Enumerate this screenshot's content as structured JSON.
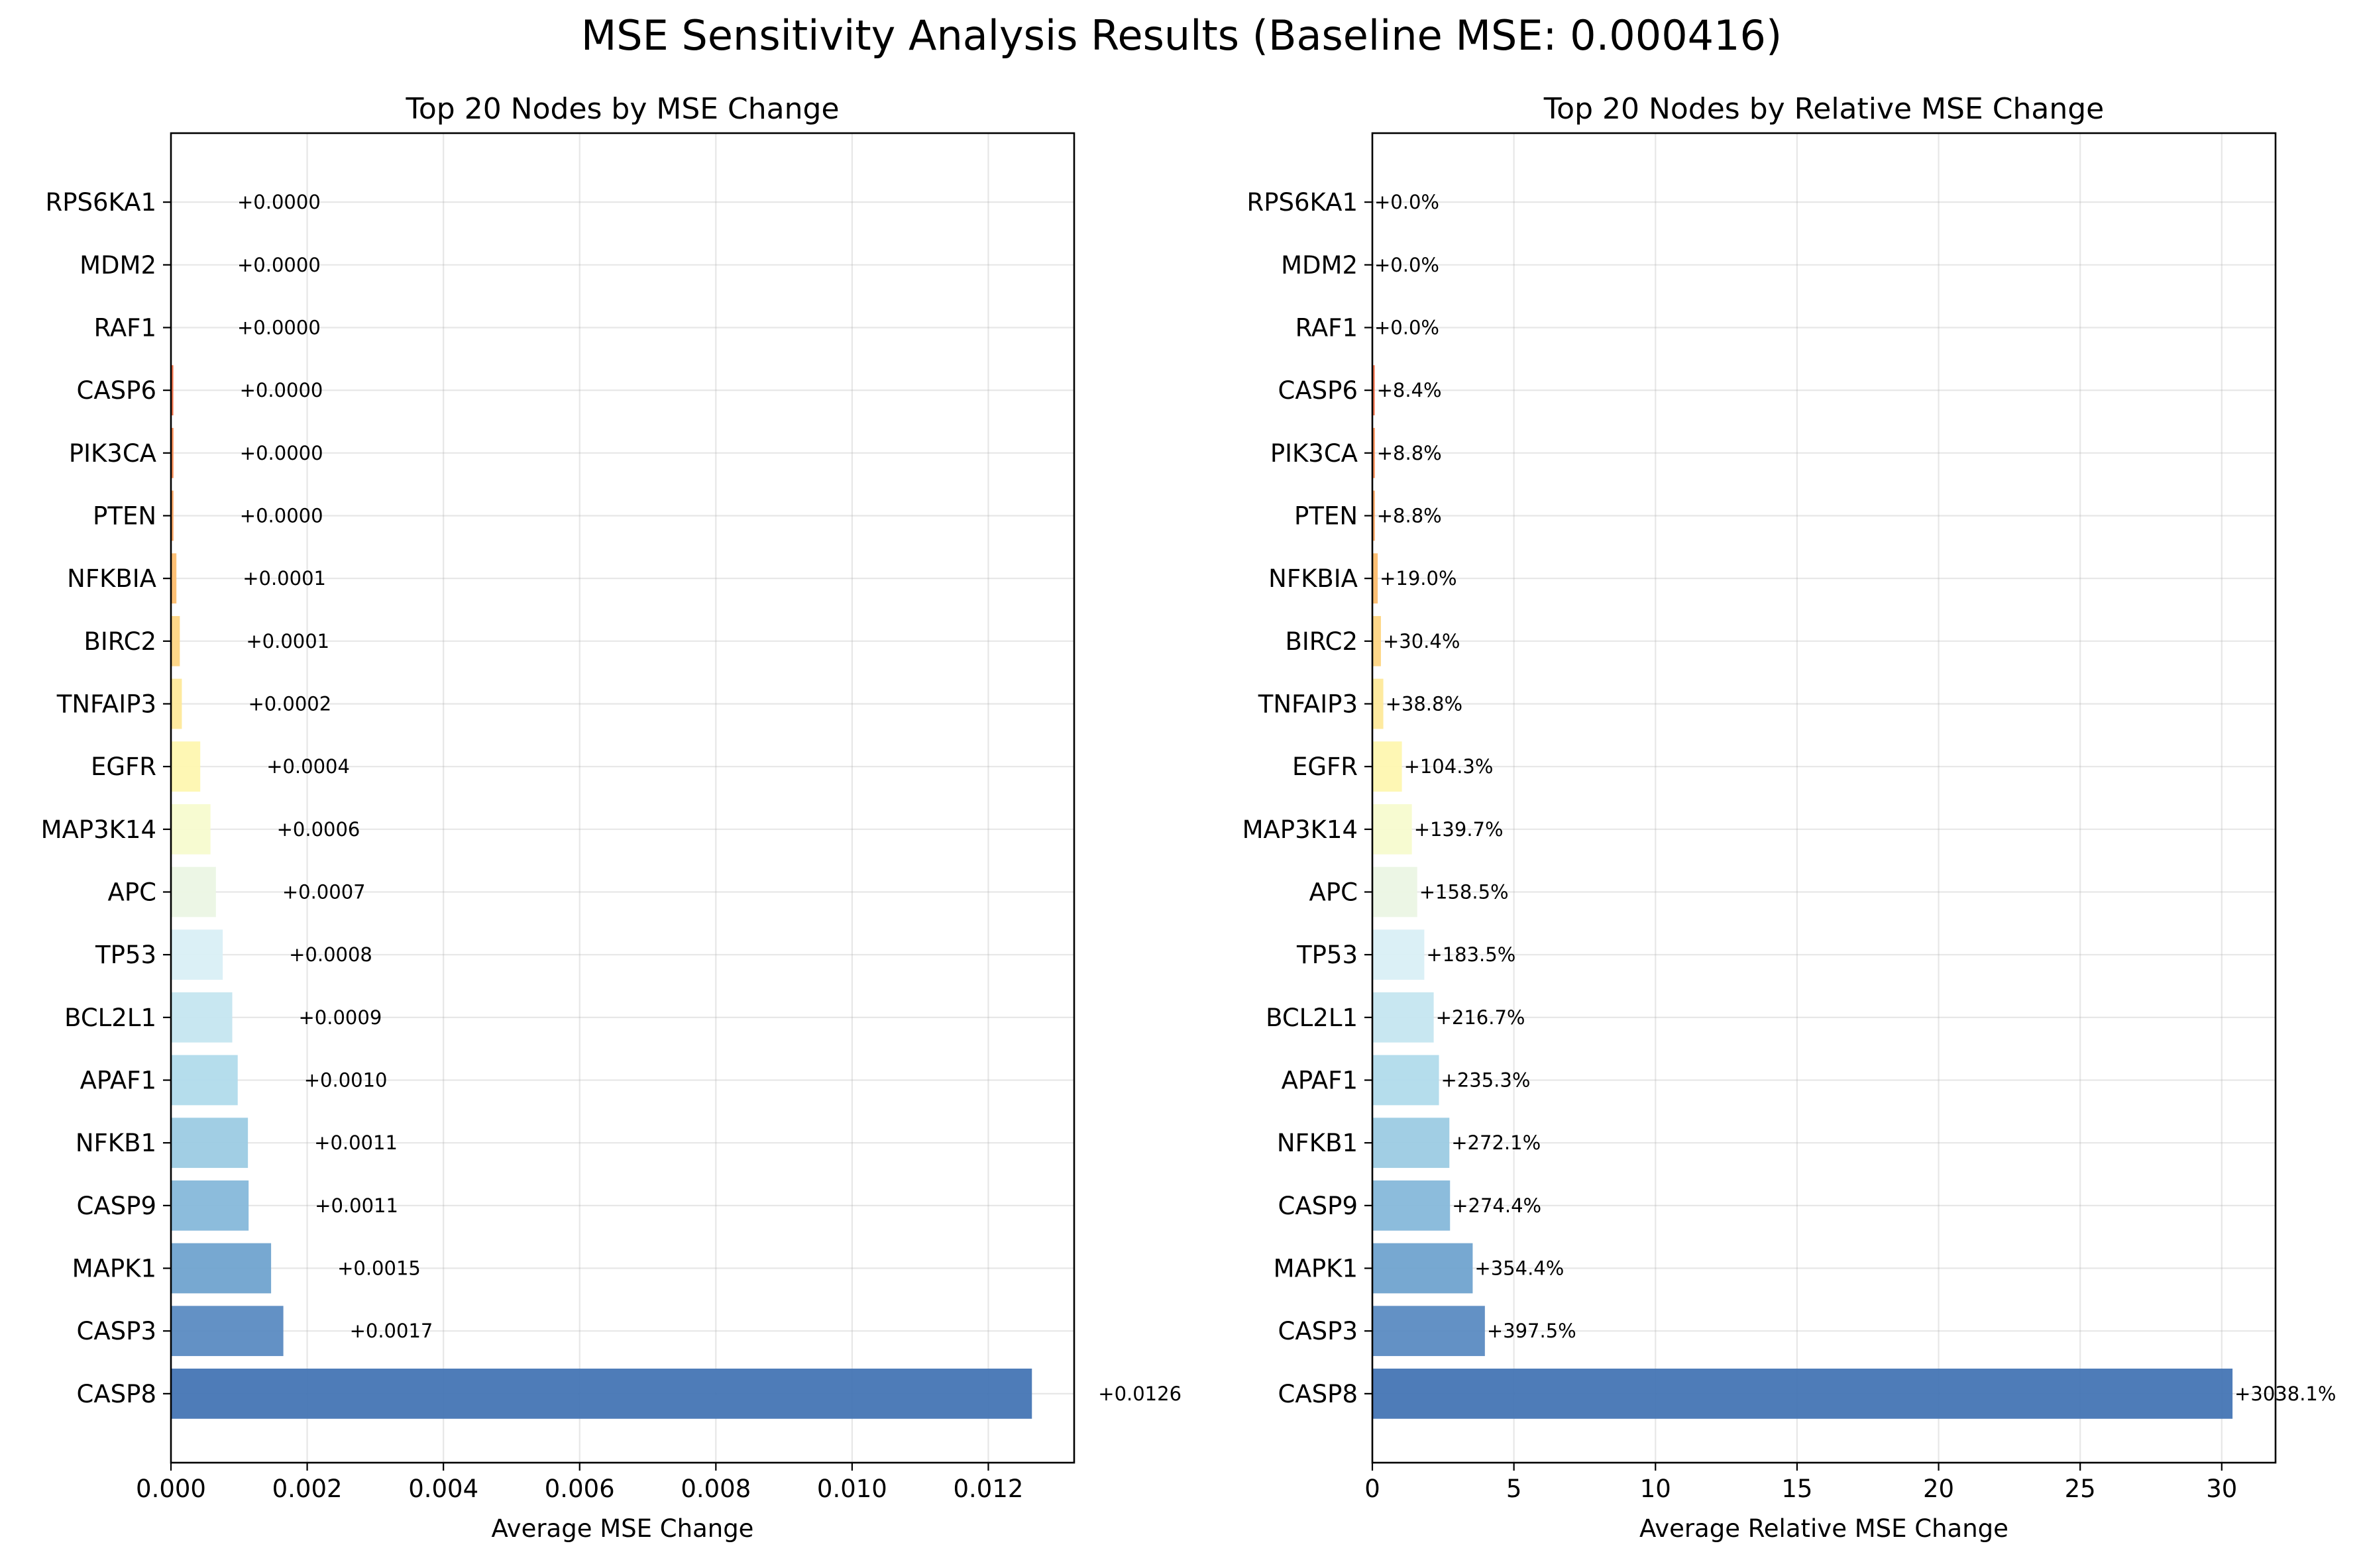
{
  "figure": {
    "title": "MSE Sensitivity Analysis Results (Baseline MSE: 0.000416)"
  },
  "chart_data": [
    {
      "type": "bar",
      "orientation": "horizontal",
      "title": "Top 20 Nodes by MSE Change",
      "xlabel": "Average MSE Change",
      "ylabel": "",
      "xlim": [
        0,
        0.01326
      ],
      "xticks": [
        0,
        0.002,
        0.004,
        0.006,
        0.008,
        0.01,
        0.012
      ],
      "xtick_labels": [
        "0.000",
        "0.002",
        "0.004",
        "0.006",
        "0.008",
        "0.010",
        "0.012"
      ],
      "grid": true,
      "categories": [
        "CASP8",
        "CASP3",
        "MAPK1",
        "CASP9",
        "NFKB1",
        "APAF1",
        "BCL2L1",
        "TP53",
        "APC",
        "MAP3K14",
        "EGFR",
        "TNFAIP3",
        "BIRC2",
        "NFKBIA",
        "PTEN",
        "PIK3CA",
        "CASP6",
        "RAF1",
        "MDM2",
        "RPS6KA1"
      ],
      "values": [
        0.01264,
        0.00165,
        0.00147,
        0.00114,
        0.00113,
        0.00098,
        0.0009,
        0.00076,
        0.00066,
        0.00058,
        0.00043,
        0.00016,
        0.00013,
        8e-05,
        3.7e-05,
        3.7e-05,
        3.5e-05,
        0.0,
        0.0,
        0.0
      ],
      "value_labels": [
        "+0.0126",
        "+0.0017",
        "+0.0015",
        "+0.0011",
        "+0.0011",
        "+0.0010",
        "+0.0009",
        "+0.0008",
        "+0.0007",
        "+0.0006",
        "+0.0004",
        "+0.0002",
        "+0.0001",
        "+0.0001",
        "+0.0000",
        "+0.0000",
        "+0.0000",
        "+0.0000",
        "+0.0000",
        "+0.0000"
      ],
      "colors": [
        "#4575b4",
        "#5b8bc2",
        "#70a3cf",
        "#86b8da",
        "#9ccbe3",
        "#b1dbeb",
        "#c5e6f0",
        "#d9eff5",
        "#ebf6e4",
        "#f7fbcf",
        "#fef7b0",
        "#fee99a",
        "#fed583",
        "#fdbd6e",
        "#fca35e",
        "#f98a50",
        "#f26d43",
        "#e54e37",
        "#d7302b",
        "#c01c28"
      ]
    },
    {
      "type": "bar",
      "orientation": "horizontal",
      "title": "Top 20 Nodes by Relative MSE Change",
      "xlabel": "Average Relative MSE Change",
      "ylabel": "",
      "xlim": [
        0,
        31.9
      ],
      "xticks": [
        0,
        5,
        10,
        15,
        20,
        25,
        30
      ],
      "xtick_labels": [
        "0",
        "5",
        "10",
        "15",
        "20",
        "25",
        "30"
      ],
      "grid": true,
      "categories": [
        "CASP8",
        "CASP3",
        "MAPK1",
        "CASP9",
        "NFKB1",
        "APAF1",
        "BCL2L1",
        "TP53",
        "APC",
        "MAP3K14",
        "EGFR",
        "TNFAIP3",
        "BIRC2",
        "NFKBIA",
        "PTEN",
        "PIK3CA",
        "CASP6",
        "RAF1",
        "MDM2",
        "RPS6KA1"
      ],
      "values": [
        30.381,
        3.975,
        3.544,
        2.744,
        2.721,
        2.353,
        2.167,
        1.835,
        1.585,
        1.397,
        1.043,
        0.388,
        0.304,
        0.19,
        0.088,
        0.088,
        0.084,
        0.0,
        0.0,
        0.0
      ],
      "value_labels": [
        "+3038.1%",
        "+397.5%",
        "+354.4%",
        "+274.4%",
        "+272.1%",
        "+235.3%",
        "+216.7%",
        "+183.5%",
        "+158.5%",
        "+139.7%",
        "+104.3%",
        "+38.8%",
        "+30.4%",
        "+19.0%",
        "+8.8%",
        "+8.8%",
        "+8.4%",
        "+0.0%",
        "+0.0%",
        "+0.0%"
      ],
      "colors": [
        "#4575b4",
        "#5b8bc2",
        "#70a3cf",
        "#86b8da",
        "#9ccbe3",
        "#b1dbeb",
        "#c5e6f0",
        "#d9eff5",
        "#ebf6e4",
        "#f7fbcf",
        "#fef7b0",
        "#fee99a",
        "#fed583",
        "#fdbd6e",
        "#fca35e",
        "#f98a50",
        "#f26d43",
        "#e54e37",
        "#d7302b",
        "#c01c28"
      ]
    }
  ]
}
